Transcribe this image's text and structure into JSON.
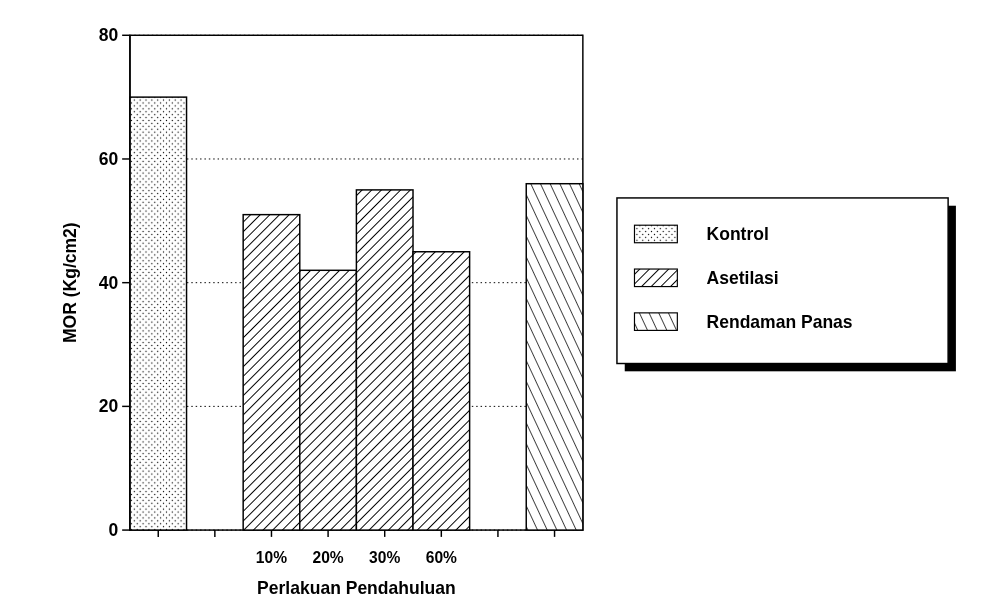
{
  "chart_data": {
    "type": "bar",
    "xlabel": "Perlakuan Pendahuluan",
    "ylabel": "MOR (Kg/cm2)",
    "categories": [
      null,
      null,
      "10%",
      "20%",
      "30%",
      "60%",
      null,
      null
    ],
    "series": [
      {
        "name": "Kontrol",
        "color": "#000000",
        "values": [
          70,
          null,
          null,
          null,
          null,
          null,
          null,
          null
        ]
      },
      {
        "name": "Asetilasi",
        "color": "#000000",
        "values": [
          null,
          null,
          51,
          42,
          55,
          45,
          null,
          null
        ]
      },
      {
        "name": "Rendaman Panas",
        "color": "#000000",
        "values": [
          null,
          null,
          null,
          null,
          null,
          null,
          null,
          56
        ]
      }
    ],
    "ylim": [
      0,
      80
    ],
    "yticks": [
      0,
      20,
      40,
      60,
      80
    ],
    "grid": "y",
    "legend": "right"
  }
}
